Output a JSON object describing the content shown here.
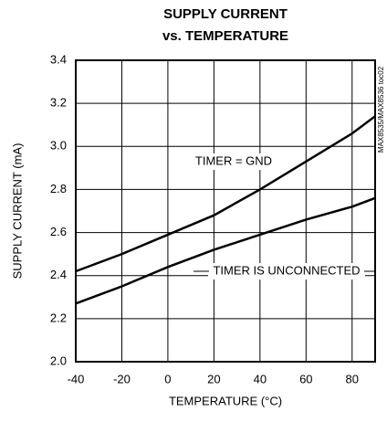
{
  "chart_data": {
    "type": "line",
    "title": "SUPPLY CURRENT",
    "subtitle": "vs. TEMPERATURE",
    "x_label": "TEMPERATURE (°C)",
    "y_label": "SUPPLY CURRENT (mA)",
    "annotation": "MAX8535/MAX8536 toc02",
    "x": [
      -40,
      -20,
      0,
      20,
      40,
      60,
      80,
      90
    ],
    "series": [
      {
        "name": "TIMER = GND",
        "color": "#000000",
        "values": [
          2.42,
          2.5,
          2.59,
          2.68,
          2.8,
          2.93,
          3.06,
          3.14
        ]
      },
      {
        "name": "TIMER IS UNCONNECTED",
        "color": "#000000",
        "values": [
          2.27,
          2.35,
          2.44,
          2.52,
          2.59,
          2.66,
          2.72,
          2.76
        ]
      }
    ],
    "xlim": [
      -40,
      90
    ],
    "xticks": [
      -40,
      -20,
      0,
      20,
      40,
      60,
      80
    ],
    "ylim": [
      2.0,
      3.4
    ],
    "yticks": [
      {
        "value": 2.0,
        "label": "2.0"
      },
      2.2,
      2.4,
      2.6,
      2.8,
      {
        "value": 3.0,
        "label": "3.0"
      },
      3.2,
      3.4
    ],
    "grid": true
  }
}
